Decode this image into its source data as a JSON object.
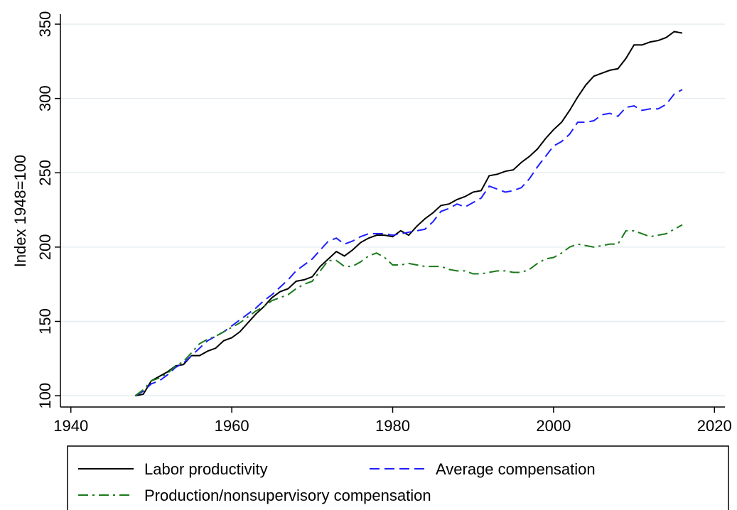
{
  "chart_data": {
    "type": "line",
    "ylabel": "Index 1948=100",
    "x": [
      1948,
      1949,
      1950,
      1951,
      1952,
      1953,
      1954,
      1955,
      1956,
      1957,
      1958,
      1959,
      1960,
      1961,
      1962,
      1963,
      1964,
      1965,
      1966,
      1967,
      1968,
      1969,
      1970,
      1971,
      1972,
      1973,
      1974,
      1975,
      1976,
      1977,
      1978,
      1979,
      1980,
      1981,
      1982,
      1983,
      1984,
      1985,
      1986,
      1987,
      1988,
      1989,
      1990,
      1991,
      1992,
      1993,
      1994,
      1995,
      1996,
      1997,
      1998,
      1999,
      2000,
      2001,
      2002,
      2003,
      2004,
      2005,
      2006,
      2007,
      2008,
      2009,
      2010,
      2011,
      2012,
      2013,
      2014,
      2015,
      2016
    ],
    "series": [
      {
        "name": "Labor productivity",
        "color": "#000000",
        "dash": "solid",
        "values": [
          100,
          101,
          110,
          113,
          116,
          120,
          121,
          127,
          127,
          130,
          132,
          137,
          139,
          143,
          149,
          155,
          160,
          166,
          170,
          172,
          177,
          178,
          180,
          187,
          192,
          197,
          194,
          198,
          203,
          206,
          208,
          208,
          207,
          211,
          208,
          214,
          219,
          223,
          228,
          229,
          232,
          234,
          237,
          238,
          248,
          249,
          251,
          252,
          257,
          261,
          266,
          273,
          279,
          284,
          292,
          301,
          309,
          315,
          317,
          319,
          320,
          327,
          336,
          336,
          338,
          339,
          341,
          345,
          344
        ]
      },
      {
        "name": "Average compensation",
        "color": "#1f1fff",
        "dash": "dash",
        "values": [
          100,
          103,
          108,
          110,
          114,
          119,
          122,
          127,
          132,
          137,
          140,
          143,
          147,
          151,
          155,
          159,
          164,
          168,
          173,
          178,
          184,
          188,
          192,
          198,
          204,
          206,
          202,
          204,
          207,
          209,
          209,
          209,
          208,
          209,
          210,
          211,
          212,
          217,
          224,
          226,
          229,
          227,
          230,
          233,
          241,
          239,
          237,
          238,
          240,
          246,
          254,
          261,
          268,
          271,
          276,
          284,
          284,
          285,
          289,
          290,
          288,
          294,
          295,
          292,
          293,
          293,
          296,
          303,
          306
        ]
      },
      {
        "name": "Production/nonsupervisory compensation",
        "color": "#1a7a1a",
        "dash": "dashdot",
        "values": [
          100,
          104,
          110,
          112,
          115,
          120,
          123,
          129,
          135,
          138,
          140,
          143,
          146,
          149,
          153,
          157,
          160,
          164,
          166,
          168,
          172,
          175,
          177,
          184,
          191,
          191,
          187,
          187,
          190,
          194,
          196,
          193,
          188,
          188,
          189,
          188,
          187,
          187,
          187,
          185,
          184,
          184,
          182,
          182,
          183,
          184,
          184,
          183,
          183,
          185,
          189,
          192,
          193,
          196,
          200,
          202,
          201,
          200,
          201,
          202,
          202,
          211,
          211,
          209,
          207,
          208,
          209,
          212,
          215
        ]
      }
    ],
    "xlim": [
      1938.7,
      2021.3
    ],
    "xticks": [
      1940,
      1960,
      1980,
      2000,
      2020
    ],
    "ylim": [
      92.4,
      356.7
    ],
    "yticks": [
      100,
      150,
      200,
      250,
      300,
      350
    ],
    "grid": true,
    "legend": "bottom"
  }
}
